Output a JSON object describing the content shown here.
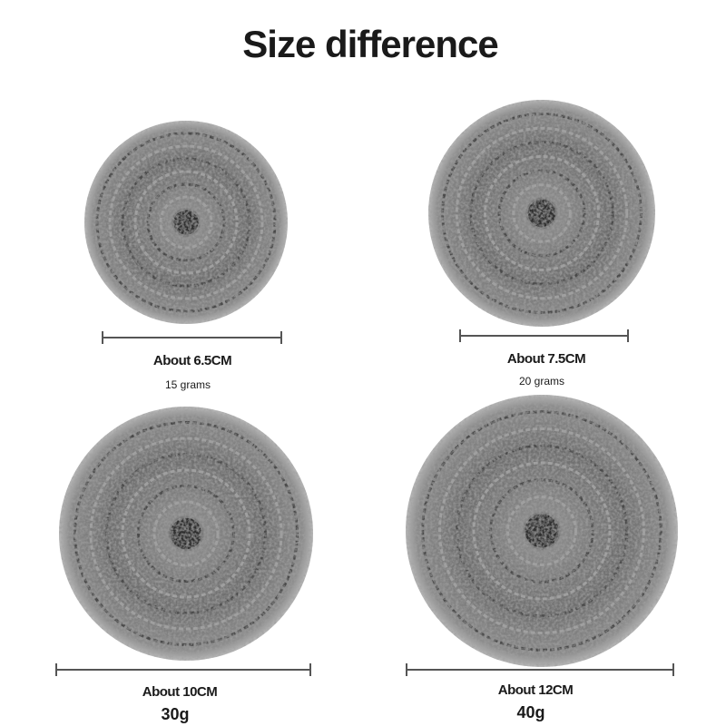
{
  "header": {
    "title": "Size difference"
  },
  "items": [
    {
      "size": "About 6.5CM",
      "weight": "15 grams"
    },
    {
      "size": "About 7.5CM",
      "weight": "20 grams"
    },
    {
      "size": "About 10CM",
      "weight": "30g"
    },
    {
      "size": "About 12CM",
      "weight": "40g"
    }
  ]
}
